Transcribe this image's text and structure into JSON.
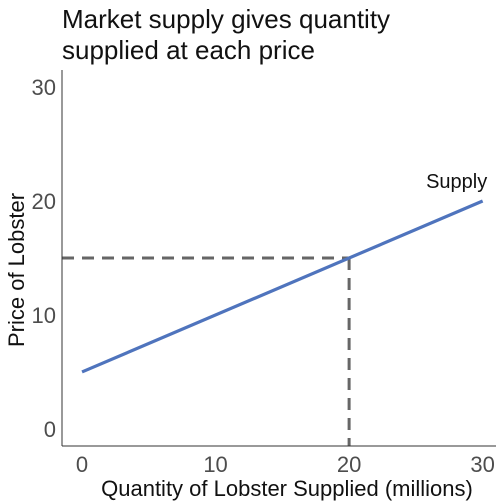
{
  "chart_data": {
    "type": "line",
    "title_lines": [
      "Market supply gives quantity",
      "supplied at each price"
    ],
    "xlabel": "Quantity of Lobster Supplied (millions)",
    "ylabel": "Price of Lobster",
    "xlim": [
      -1.5,
      31
    ],
    "ylim": [
      -1.5,
      31.5
    ],
    "xticks": [
      0,
      10,
      20,
      30
    ],
    "yticks": [
      0,
      10,
      20,
      30
    ],
    "series": [
      {
        "name": "Supply",
        "x": [
          0,
          30
        ],
        "y": [
          5,
          20
        ],
        "color": "#4f74bd"
      }
    ],
    "reference_point": {
      "x": 20,
      "y": 15,
      "color": "#666666",
      "style": "dashed"
    },
    "grid": false
  }
}
